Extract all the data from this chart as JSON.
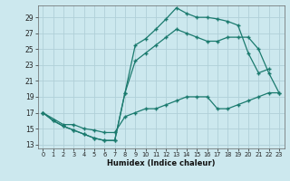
{
  "title": "",
  "xlabel": "Humidex (Indice chaleur)",
  "bg_color": "#cce8ee",
  "grid_color": "#b0d0d8",
  "line_color": "#1a7a6e",
  "xlim": [
    -0.5,
    23.5
  ],
  "ylim": [
    12.5,
    30.5
  ],
  "xticks": [
    0,
    1,
    2,
    3,
    4,
    5,
    6,
    7,
    8,
    9,
    10,
    11,
    12,
    13,
    14,
    15,
    16,
    17,
    18,
    19,
    20,
    21,
    22,
    23
  ],
  "yticks": [
    13,
    15,
    17,
    19,
    21,
    23,
    25,
    27,
    29
  ],
  "line1_x": [
    0,
    1,
    2,
    3,
    4,
    5,
    6,
    7,
    8,
    9,
    10,
    11,
    12,
    13,
    14,
    15,
    16,
    17,
    18,
    19,
    20,
    21,
    22
  ],
  "line1_y": [
    17.0,
    16.0,
    15.3,
    14.8,
    14.3,
    13.8,
    13.5,
    13.5,
    19.5,
    25.5,
    26.3,
    27.5,
    28.8,
    30.2,
    29.5,
    29.0,
    29.0,
    28.8,
    28.5,
    28.0,
    24.5,
    22.0,
    22.5
  ],
  "line2_x": [
    0,
    1,
    2,
    3,
    4,
    5,
    6,
    7,
    8,
    9,
    10,
    11,
    12,
    13,
    14,
    15,
    16,
    17,
    18,
    19,
    20,
    21,
    22,
    23
  ],
  "line2_y": [
    17.0,
    16.0,
    15.3,
    14.8,
    14.3,
    13.8,
    13.5,
    13.5,
    19.5,
    23.5,
    24.5,
    25.5,
    26.5,
    27.5,
    27.0,
    26.5,
    26.0,
    26.0,
    26.5,
    26.5,
    26.5,
    25.0,
    22.0,
    19.5
  ],
  "line3_x": [
    0,
    2,
    3,
    4,
    5,
    6,
    7,
    8,
    9,
    10,
    11,
    12,
    13,
    14,
    15,
    16,
    17,
    18,
    19,
    20,
    21,
    22,
    23
  ],
  "line3_y": [
    17.0,
    15.5,
    15.5,
    15.0,
    14.8,
    14.5,
    14.5,
    16.5,
    17.0,
    17.5,
    17.5,
    18.0,
    18.5,
    19.0,
    19.0,
    19.0,
    17.5,
    17.5,
    18.0,
    18.5,
    19.0,
    19.5,
    19.5
  ]
}
